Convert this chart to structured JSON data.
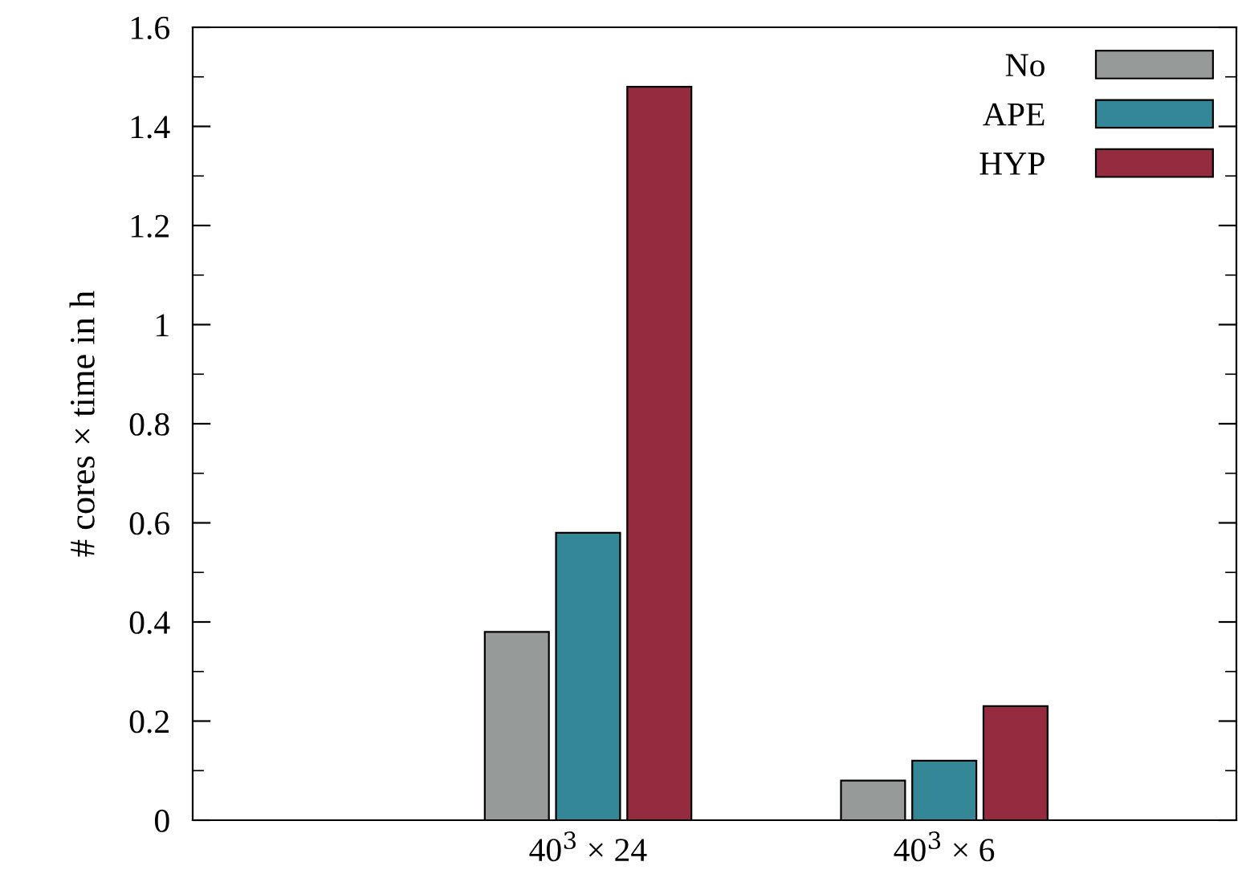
{
  "chart_data": {
    "type": "bar",
    "ylabel": "# cores × time in h",
    "categories": [
      "40$^{3}$ × 24",
      "40$^{3}$ × 6"
    ],
    "series": [
      {
        "name": "No",
        "color": "#969b9a",
        "values": [
          0.38,
          0.08
        ]
      },
      {
        "name": "APE",
        "color": "#348797",
        "values": [
          0.58,
          0.12
        ]
      },
      {
        "name": "HYP",
        "color": "#952b3e",
        "values": [
          1.48,
          0.23
        ]
      }
    ],
    "ylim": [
      0,
      1.6
    ],
    "yticks": [
      0,
      0.2,
      0.4,
      0.6,
      0.8,
      1,
      1.2,
      1.4,
      1.6
    ],
    "grid": false,
    "legend": "top right"
  }
}
